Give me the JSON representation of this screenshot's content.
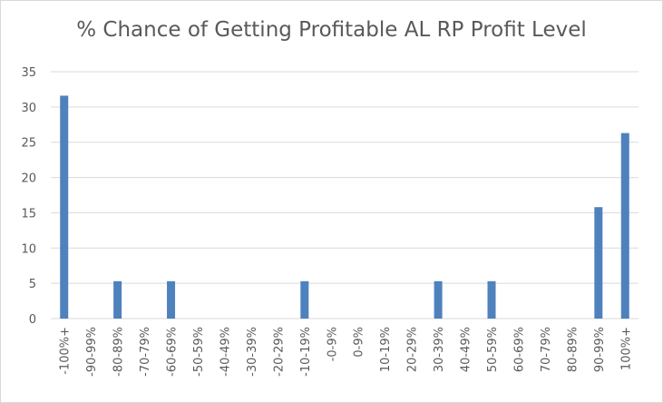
{
  "chart_data": {
    "type": "bar",
    "title": "% Chance of Getting Profitable AL RP Profit Level",
    "xlabel": "",
    "ylabel": "",
    "ylim": [
      0,
      35
    ],
    "yticks": [
      0,
      5,
      10,
      15,
      20,
      25,
      30,
      35
    ],
    "grid": true,
    "legend": "none",
    "bar_color": "#4f81bd",
    "grid_color": "#d9d9d9",
    "categories": [
      "-100%+",
      "-90-99%",
      "-80-89%",
      "-70-79%",
      "-60-69%",
      "-50-59%",
      "-40-49%",
      "-30-39%",
      "-20-29%",
      "-10-19%",
      "-0-9%",
      "0-9%",
      "10-19%",
      "20-29%",
      "30-39%",
      "40-49%",
      "50-59%",
      "60-69%",
      "70-79%",
      "80-89%",
      "90-99%",
      "100%+"
    ],
    "values": [
      31.6,
      0,
      5.3,
      0,
      5.3,
      0,
      0,
      0,
      0,
      5.3,
      0,
      0,
      0,
      0,
      5.3,
      0,
      5.3,
      0,
      0,
      0,
      15.8,
      26.3
    ]
  }
}
